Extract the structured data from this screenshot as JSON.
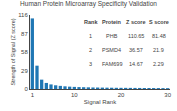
{
  "chart_data": {
    "type": "bar",
    "title": "Human Protein Microarray Specificity Validation",
    "xlabel": "Signal Rank",
    "ylabel": "Strength of Signal (Z score)",
    "x": [
      1,
      2,
      3,
      4,
      5,
      6,
      7,
      8,
      9,
      10,
      11,
      12,
      13,
      14,
      15,
      16,
      17,
      18,
      19,
      20,
      21,
      22,
      23,
      24,
      25,
      26,
      27,
      28,
      29,
      30
    ],
    "values": [
      110.65,
      36.57,
      14.67,
      9.5,
      7.2,
      5.8,
      4.9,
      4.2,
      3.7,
      3.3,
      3.0,
      2.8,
      2.6,
      2.4,
      2.3,
      2.2,
      2.1,
      2.0,
      1.9,
      1.85,
      1.8,
      1.75,
      1.7,
      1.65,
      1.6,
      1.55,
      1.5,
      1.45,
      1.4,
      1.35
    ],
    "xlim": [
      0.5,
      30.5
    ],
    "xticks": [
      1,
      10,
      20,
      30
    ],
    "ylim": [
      0,
      116
    ],
    "yticks": [
      0,
      29,
      58,
      87,
      116
    ],
    "grid": false,
    "table": {
      "headers": [
        "Rank",
        "Protein",
        "Z score",
        "S score"
      ],
      "rows": [
        [
          "1",
          "PHB",
          "110.65",
          "81.48"
        ],
        [
          "2",
          "PSMD4",
          "36.57",
          "21.9"
        ],
        [
          "3",
          "FAM699",
          "14.67",
          "2.29"
        ]
      ]
    }
  }
}
